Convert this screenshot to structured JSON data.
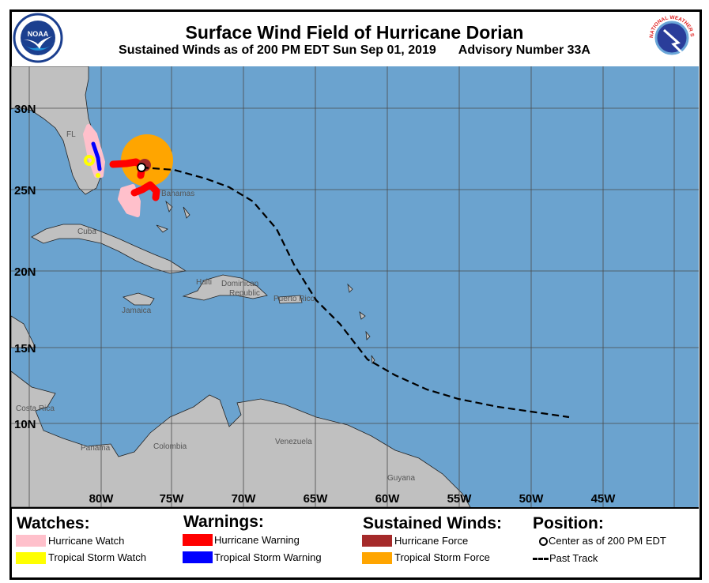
{
  "header": {
    "title": "Surface Wind Field of Hurricane Dorian",
    "subtitle_time": "Sustained Winds as of 200 PM EDT Sun Sep 01, 2019",
    "subtitle_advisory": "Advisory Number 33A",
    "left_logo": "NOAA",
    "right_logo": "NATIONAL WEATHER SERVICE"
  },
  "map": {
    "lat_labels": [
      "30N",
      "25N",
      "20N",
      "15N",
      "10N"
    ],
    "lon_labels": [
      "80W",
      "75W",
      "70W",
      "65W",
      "60W",
      "55W",
      "50W",
      "45W"
    ],
    "place_labels": {
      "fl": "FL",
      "bahamas": "Bahamas",
      "cuba": "Cuba",
      "jamaica": "Jamaica",
      "haiti": "Haiti",
      "dominican": "Dominican",
      "republic": "Republic",
      "puerto_rico": "Puerto Rico",
      "costa_rica": "Costa Rica",
      "panama": "Panama",
      "colombia": "Colombia",
      "venezuela": "Venezuela",
      "guyana": "Guyana"
    },
    "colors": {
      "ocean": "#6ba3cf",
      "land": "#c0c0c0",
      "grid": "#4a4a4a"
    }
  },
  "legend": {
    "watches": {
      "heading": "Watches:",
      "items": [
        {
          "label": "Hurricane Watch",
          "color": "#ffc0cb"
        },
        {
          "label": "Tropical Storm Watch",
          "color": "#ffff00"
        }
      ]
    },
    "warnings": {
      "heading": "Warnings:",
      "items": [
        {
          "label": "Hurricane Warning",
          "color": "#ff0000"
        },
        {
          "label": "Tropical Storm Warning",
          "color": "#0000ff"
        }
      ]
    },
    "winds": {
      "heading": "Sustained Winds:",
      "items": [
        {
          "label": "Hurricane Force",
          "color": "#a52a2a"
        },
        {
          "label": "Tropical Storm Force",
          "color": "#ffa500"
        }
      ]
    },
    "position": {
      "heading": "Position:",
      "center_label": "Center as of 200 PM EDT",
      "track_label": "Past Track"
    }
  }
}
